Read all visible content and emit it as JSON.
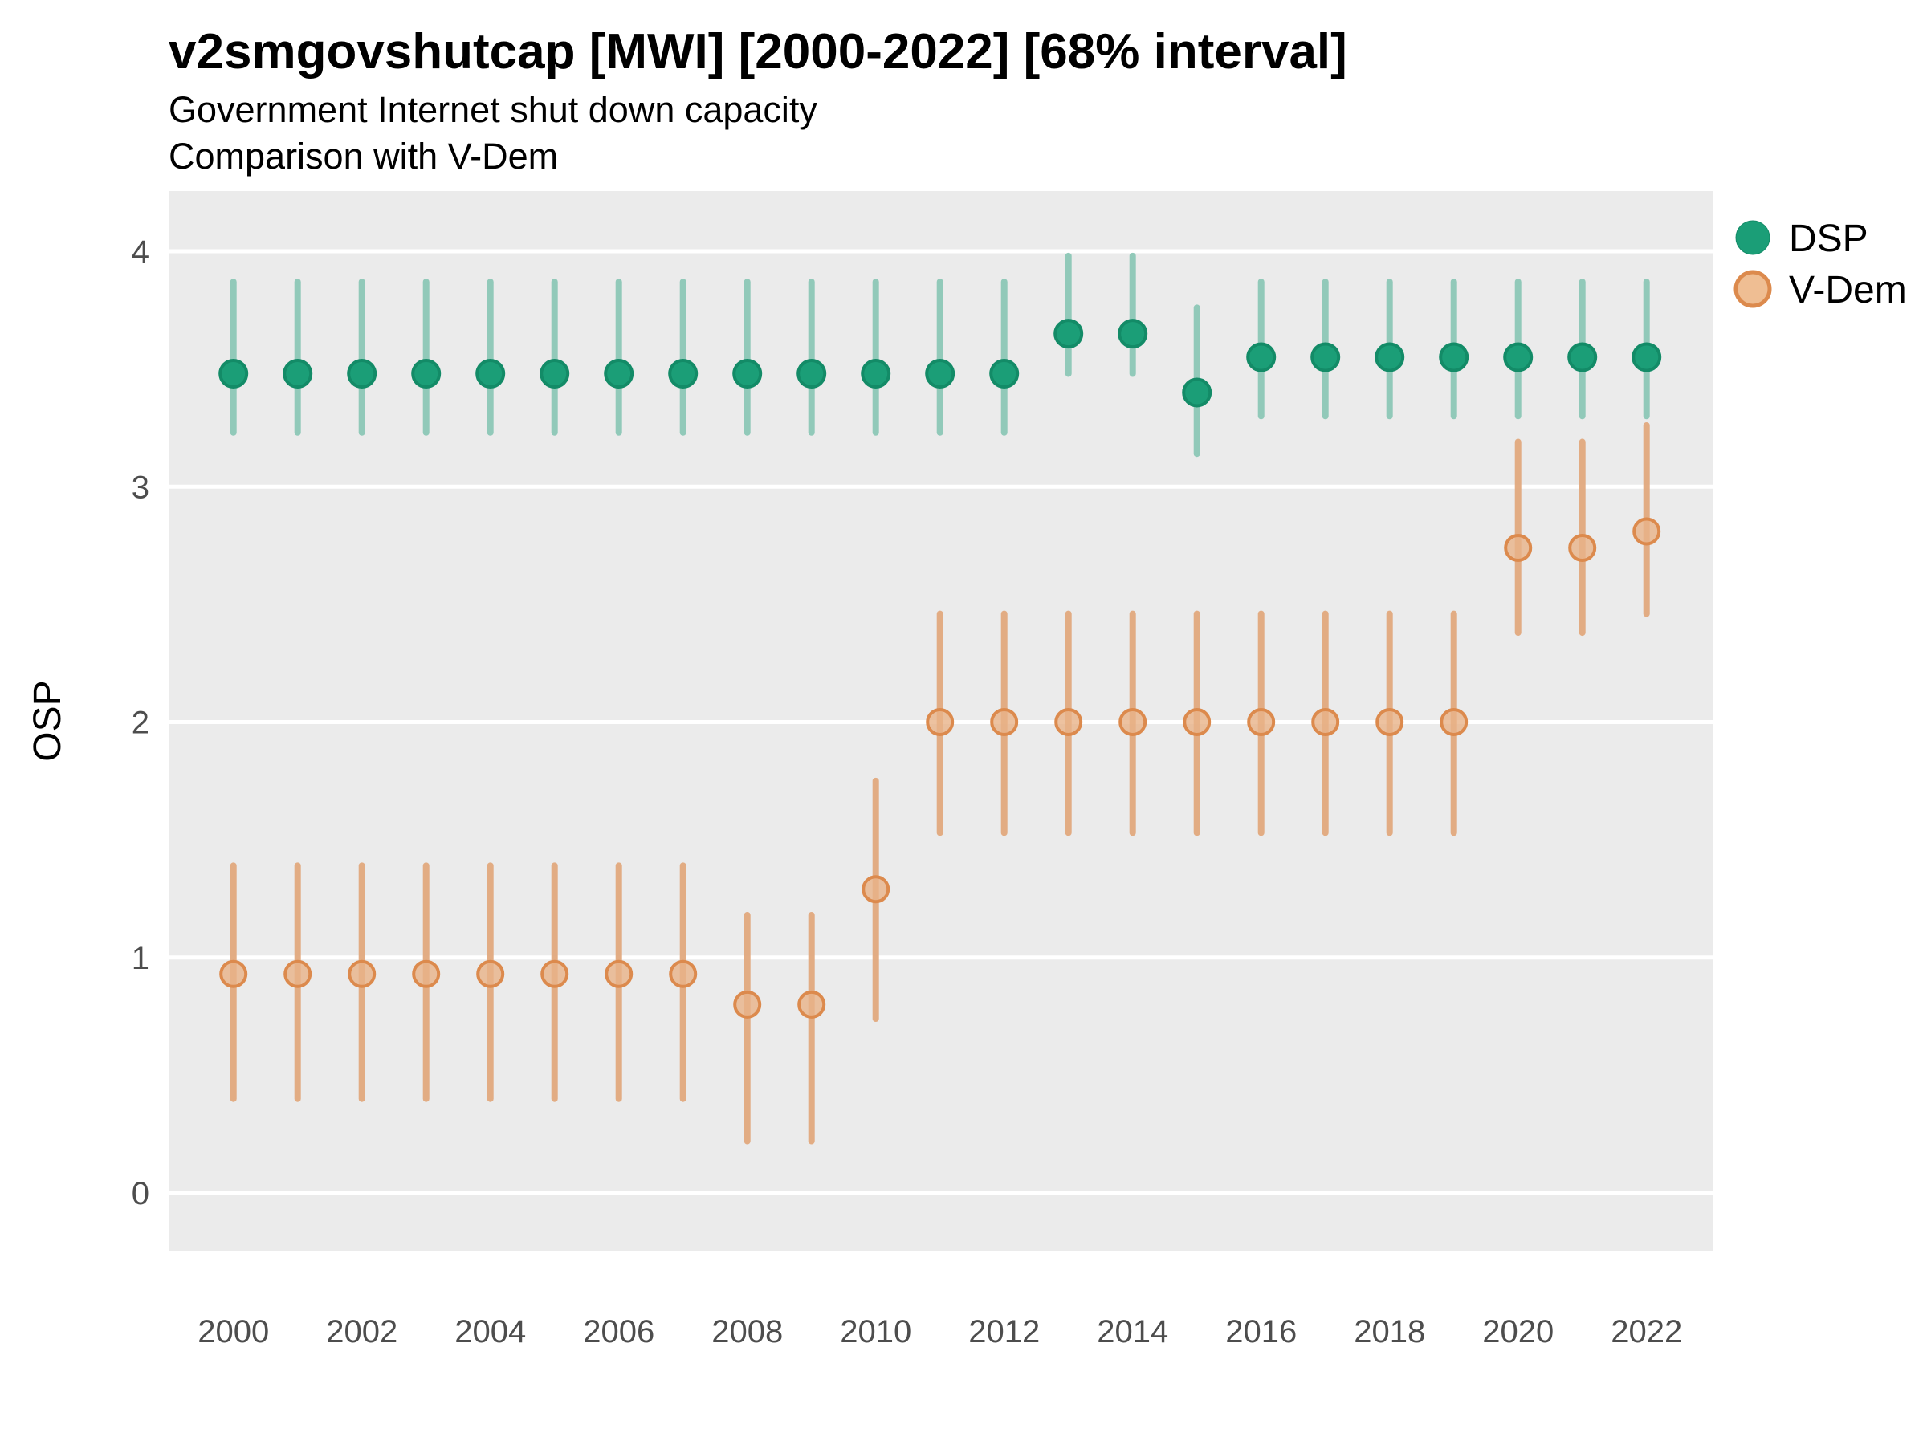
{
  "header": {
    "title": "v2smgovshutcap [MWI] [2000-2022] [68% interval]",
    "subtitle_line1": "Government Internet shut down capacity",
    "subtitle_line2": "Comparison with V-Dem"
  },
  "axes": {
    "y_label": "OSP",
    "y_ticks": [
      4,
      3,
      2,
      1,
      0
    ],
    "x_ticks": [
      2000,
      2002,
      2004,
      2006,
      2008,
      2010,
      2012,
      2014,
      2016,
      2018,
      2020,
      2022
    ]
  },
  "legend": {
    "items": [
      {
        "label": "DSP",
        "fill": "#1B9E77",
        "stroke": "#138B67"
      },
      {
        "label": "V-Dem",
        "fill": "#EFBE93",
        "stroke": "#DC8A4D"
      }
    ]
  },
  "colors": {
    "panel_background": "#EBEBEB",
    "gridline": "#FFFFFF",
    "dsp_bar": "#8DC8B7",
    "dsp_point_fill": "#1B9E77",
    "dsp_point_stroke": "#138B67",
    "vdem_bar": "#E2A97E",
    "vdem_point_fill": "#E8B388",
    "vdem_point_stroke": "#DC8A4D"
  },
  "chart_data": {
    "type": "pointrange (dot-and-interval) chart, 68% interval",
    "x": [
      2000,
      2001,
      2002,
      2003,
      2004,
      2005,
      2006,
      2007,
      2008,
      2009,
      2010,
      2011,
      2012,
      2013,
      2014,
      2015,
      2016,
      2017,
      2018,
      2019,
      2020,
      2021,
      2022
    ],
    "xlabel": "",
    "ylabel": "OSP",
    "ylim_gridlines": [
      0,
      4
    ],
    "grid": "horizontal white lines on grey panel",
    "legend_position": "right-top",
    "series": [
      {
        "name": "DSP",
        "estimate": [
          3.48,
          3.48,
          3.48,
          3.48,
          3.48,
          3.48,
          3.48,
          3.48,
          3.48,
          3.48,
          3.48,
          3.48,
          3.48,
          3.65,
          3.65,
          3.4,
          3.55,
          3.55,
          3.55,
          3.55,
          3.55,
          3.55,
          3.55
        ],
        "lower68": [
          3.23,
          3.23,
          3.23,
          3.23,
          3.23,
          3.23,
          3.23,
          3.23,
          3.23,
          3.23,
          3.23,
          3.23,
          3.23,
          3.48,
          3.48,
          3.14,
          3.3,
          3.3,
          3.3,
          3.3,
          3.3,
          3.3,
          3.3
        ],
        "upper68": [
          3.87,
          3.87,
          3.87,
          3.87,
          3.87,
          3.87,
          3.87,
          3.87,
          3.87,
          3.87,
          3.87,
          3.87,
          3.87,
          3.98,
          3.98,
          3.76,
          3.87,
          3.87,
          3.87,
          3.87,
          3.87,
          3.87,
          3.87
        ]
      },
      {
        "name": "V-Dem",
        "estimate": [
          0.93,
          0.93,
          0.93,
          0.93,
          0.93,
          0.93,
          0.93,
          0.93,
          0.8,
          0.8,
          1.29,
          2.0,
          2.0,
          2.0,
          2.0,
          2.0,
          2.0,
          2.0,
          2.0,
          2.0,
          2.74,
          2.74,
          2.81
        ],
        "lower68": [
          0.4,
          0.4,
          0.4,
          0.4,
          0.4,
          0.4,
          0.4,
          0.4,
          0.22,
          0.22,
          0.74,
          1.53,
          1.53,
          1.53,
          1.53,
          1.53,
          1.53,
          1.53,
          1.53,
          1.53,
          2.38,
          2.38,
          2.46
        ],
        "upper68": [
          1.39,
          1.39,
          1.39,
          1.39,
          1.39,
          1.39,
          1.39,
          1.39,
          1.18,
          1.18,
          1.75,
          2.46,
          2.46,
          2.46,
          2.46,
          2.46,
          2.46,
          2.46,
          2.46,
          2.46,
          3.19,
          3.19,
          3.26
        ]
      }
    ]
  }
}
